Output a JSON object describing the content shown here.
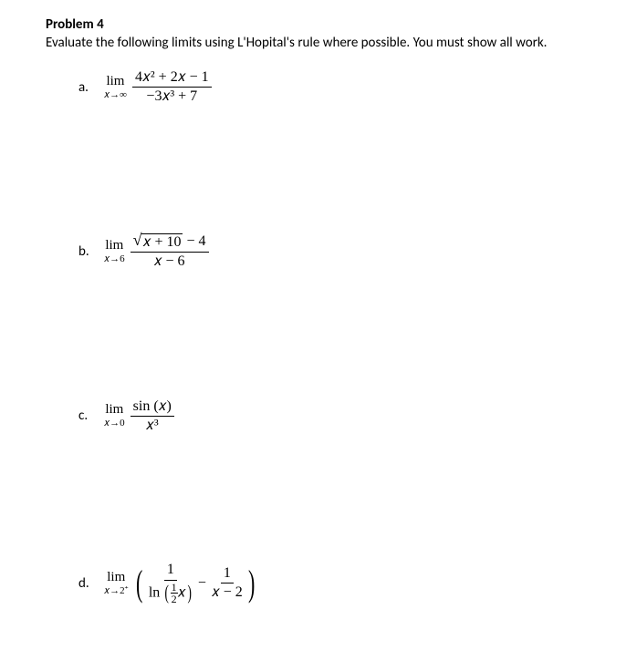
{
  "title": "Problem 4",
  "instruction": "Evaluate the following limits using L'Hopital's rule where possible. You must show all work.",
  "problems": {
    "a": {
      "label": "a.",
      "lim_top": "lim",
      "lim_bot": "𝑥→∞",
      "num": "4𝑥² + 2𝑥 − 1",
      "den": "−3𝑥³ + 7"
    },
    "b": {
      "label": "b.",
      "lim_top": "lim",
      "lim_bot": "𝑥→6",
      "radicand": "𝑥 + 10",
      "num_tail": " − 4",
      "den": "𝑥 − 6"
    },
    "c": {
      "label": "c.",
      "lim_top": "lim",
      "lim_bot": "𝑥→0",
      "num": "sin (𝑥)",
      "den": "𝑥³"
    },
    "d": {
      "label": "d.",
      "lim_top": "lim",
      "lim_bot": "𝑥→2⁺",
      "f1_num": "1",
      "f1_den_ln": "ln",
      "f1_den_inner_num": "1",
      "f1_den_inner_den": "2",
      "f1_den_x": "𝑥",
      "minus": "−",
      "f2_num": "1",
      "f2_den": "𝑥 − 2"
    }
  }
}
